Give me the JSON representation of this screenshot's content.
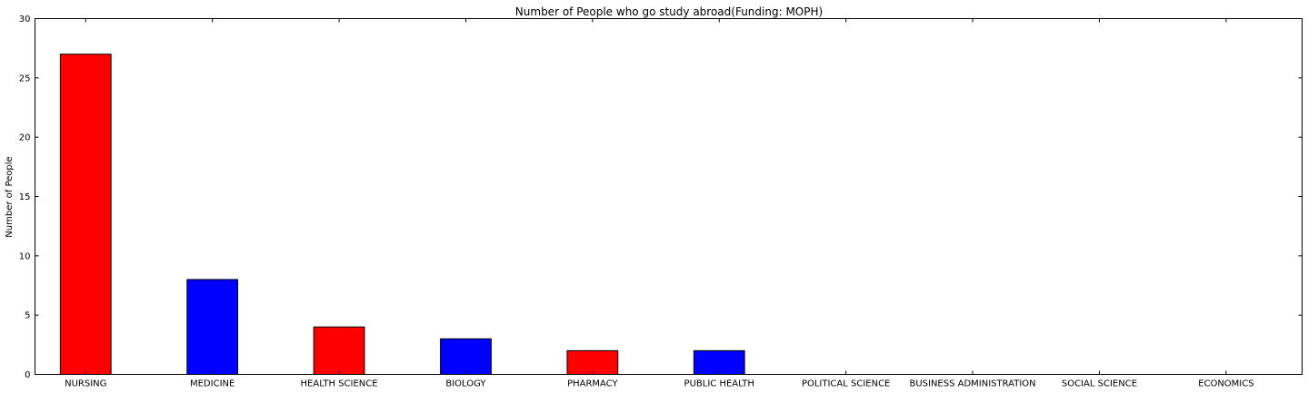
{
  "chart_data": {
    "type": "bar",
    "title": "Number of People who go study abroad(Funding: MOPH)",
    "xlabel": "",
    "ylabel": "Number of People",
    "categories": [
      "NURSING",
      "MEDICINE",
      "HEALTH SCIENCE",
      "BIOLOGY",
      "PHARMACY",
      "PUBLIC HEALTH",
      "POLITICAL SCIENCE",
      "BUSINESS ADMINISTRATION",
      "SOCIAL SCIENCE",
      "ECONOMICS"
    ],
    "values": [
      27,
      8,
      4,
      3,
      2,
      2,
      0,
      0,
      0,
      0
    ],
    "bar_colors": [
      "#ff0000",
      "#0000ff",
      "#ff0000",
      "#0000ff",
      "#ff0000",
      "#0000ff",
      "#ff0000",
      "#0000ff",
      "#ff0000",
      "#0000ff"
    ],
    "ylim": [
      0,
      30
    ],
    "yticks": [
      0,
      5,
      10,
      15,
      20,
      25,
      30
    ],
    "grid": false,
    "legend": "none"
  }
}
